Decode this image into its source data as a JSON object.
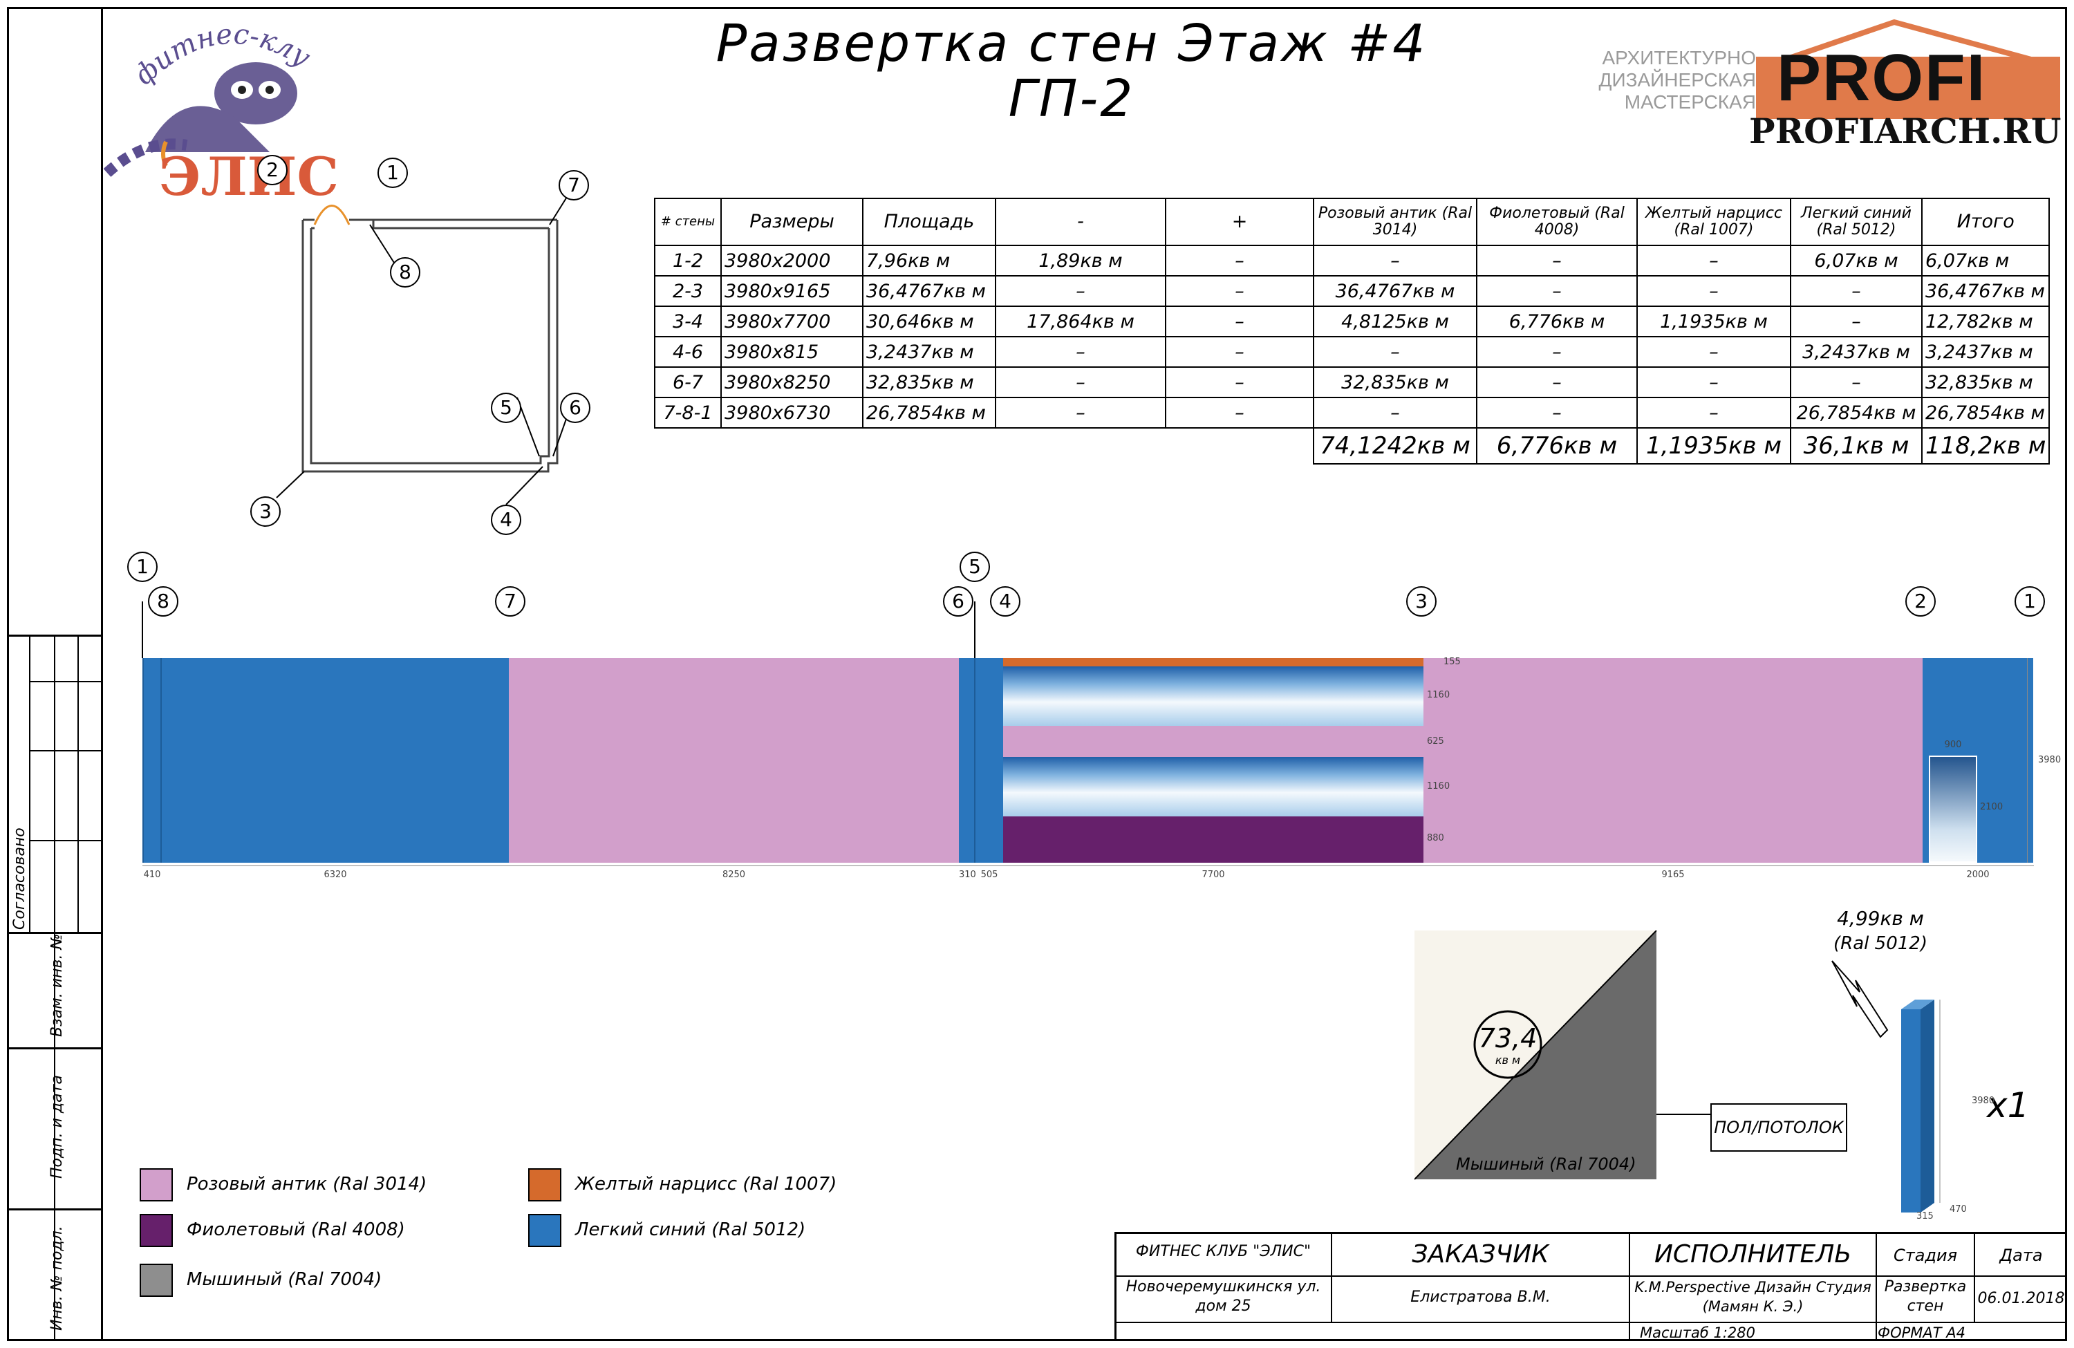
{
  "logo": {
    "arc_text": "фитнес-клуб",
    "name": "ЭЛИС"
  },
  "title": {
    "line1": "Развертка стен Этаж #4",
    "line2": "ГП-2"
  },
  "studio": {
    "sub1": "АРХИТЕКТУРНО",
    "sub2": "ДИЗАЙНЕРСКАЯ",
    "sub3": "МАСТЕРСКАЯ",
    "brand": "PROFI",
    "url": "PROFIARCH.RU"
  },
  "plan_labels": [
    "1",
    "2",
    "3",
    "4",
    "5",
    "6",
    "7",
    "8"
  ],
  "table": {
    "headers": [
      "# стены",
      "Размеры",
      "Площадь",
      "-",
      "+",
      "Розовый антик (Ral 3014)",
      "Фиолетовый (Ral 4008)",
      "Желтый нарцисс (Ral 1007)",
      "Легкий синий (Ral 5012)",
      "Итого"
    ],
    "rows": [
      [
        "1-2",
        "3980x2000",
        "7,96кв м",
        "1,89кв м",
        "–",
        "–",
        "–",
        "–",
        "6,07кв м",
        "6,07кв м"
      ],
      [
        "2-3",
        "3980x9165",
        "36,4767кв м",
        "–",
        "–",
        "36,4767кв м",
        "–",
        "–",
        "–",
        "36,4767кв м"
      ],
      [
        "3-4",
        "3980x7700",
        "30,646кв м",
        "17,864кв м",
        "–",
        "4,8125кв м",
        "6,776кв м",
        "1,1935кв м",
        "–",
        "12,782кв м"
      ],
      [
        "4-6",
        "3980x815",
        "3,2437кв м",
        "–",
        "–",
        "–",
        "–",
        "–",
        "3,2437кв м",
        "3,2437кв м"
      ],
      [
        "6-7",
        "3980x8250",
        "32,835кв м",
        "–",
        "–",
        "32,835кв м",
        "–",
        "–",
        "–",
        "32,835кв м"
      ],
      [
        "7-8-1",
        "3980x6730",
        "26,7854кв м",
        "–",
        "–",
        "–",
        "–",
        "–",
        "26,7854кв м",
        "26,7854кв м"
      ]
    ],
    "totals": [
      "74,1242кв м",
      "6,776кв м",
      "1,1935кв м",
      "36,1кв м",
      "118,2кв м"
    ]
  },
  "elevation": {
    "axis_top": [
      "1",
      "5"
    ],
    "axis_mid": [
      "8",
      "7",
      "6",
      "4",
      "3",
      "2",
      "1"
    ],
    "bottom_dims": [
      "410",
      "6320",
      "8250",
      "310",
      "505",
      "7700",
      "9165",
      "2000"
    ],
    "side_dims": [
      "155",
      "1160",
      "625",
      "1160",
      "880"
    ],
    "right_dim": "3980",
    "door_width": "900",
    "door_height": "2100"
  },
  "floor": {
    "value": "73,4",
    "unit": "кв м",
    "color_label": "Мышиный (Ral 7004)",
    "tag": "ПОЛ/ПОТОЛОК"
  },
  "column": {
    "area": "4,99кв м",
    "ral": "(Ral 5012)",
    "count": "x1",
    "h": "3980",
    "d1": "315",
    "d2": "470"
  },
  "legend": [
    {
      "label": "Розовый антик (Ral 3014)",
      "color": "#d29fcb"
    },
    {
      "label": "Фиолетовый (Ral 4008)",
      "color": "#66206b"
    },
    {
      "label": "Мышиный (Ral 7004)",
      "color": "#8e8e8e"
    },
    {
      "label": "Желтый нарцисс (Ral 1007)",
      "color": "#d56a2c"
    },
    {
      "label": "Легкий синий (Ral 5012)",
      "color": "#2a76bd"
    }
  ],
  "stamp": {
    "club": "ФИТНЕС КЛУБ \"ЭЛИС\"",
    "address": "Новочеремушкинскя ул. дом 25",
    "customer_label": "ЗАКАЗЧИК",
    "customer": "Елистратова В.М.",
    "executor_label": "ИСПОЛНИТЕЛЬ",
    "executor": "K.M.Perspective Дизайн Студия (Мамян К. Э.)",
    "stage_label": "Стадия",
    "stage": "Развертка стен",
    "date_label": "Дата",
    "date": "06.01.2018",
    "scale": "Масштаб 1:280",
    "format": "ФОРМАТ А4"
  },
  "side_stamp": [
    "Согласовано",
    "Взам. инв. №",
    "Подп. и дата",
    "Инв. № подл."
  ]
}
